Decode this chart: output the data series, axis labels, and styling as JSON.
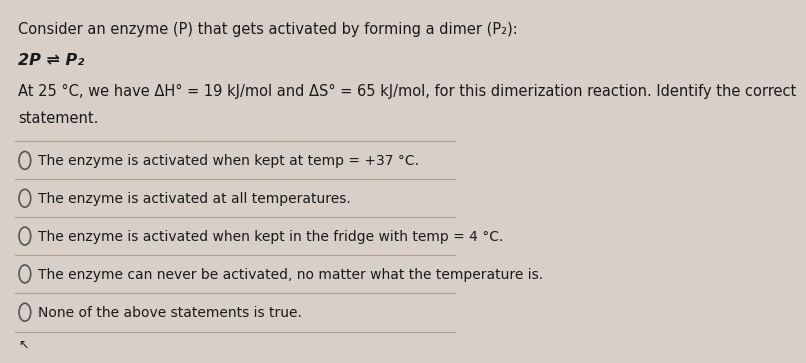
{
  "background_color": "#d8d0c8",
  "text_color": "#1a1a1a",
  "title_line1": "Consider an enzyme (P) that gets activated by forming a dimer (P₂):",
  "equation": "2P ⇌ P₂",
  "description": "At 25 °C, we have ΔH° = 19 kJ/mol and ΔS° = 65 kJ/mol, for this dimerization reaction. Identify the correct",
  "description2": "statement.",
  "options": [
    "The enzyme is activated when kept at temp = +37 °C.",
    "The enzyme is activated at all temperatures.",
    "The enzyme is activated when kept in the fridge with temp = 4 °C.",
    "The enzyme can never be activated, no matter what the temperature is.",
    "None of the above statements is true."
  ],
  "divider_color": "#b0a090",
  "circle_color": "#555555",
  "font_size_body": 10.5,
  "font_size_equation": 11.5,
  "font_size_options": 10.0
}
